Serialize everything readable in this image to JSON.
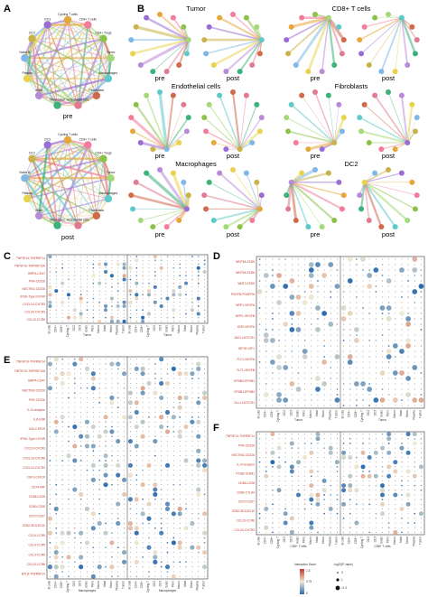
{
  "panels": {
    "A": {
      "label": "A",
      "networks": [
        {
          "caption": "pre",
          "nodes": [
            "Cycling T cells",
            "CD8+ T cells",
            "CD4+ Tregs",
            "Tumor",
            "Macrophages",
            "Fibroblasts",
            "Endothelial cells",
            "Monocytes",
            "Mast",
            "Plasma",
            "Naive B",
            "DC2",
            "DC3"
          ]
        },
        {
          "caption": "post",
          "nodes": [
            "Cycling T cells",
            "CD8+ T cells",
            "CD4+ Tregs",
            "Tumor",
            "Macrophages",
            "Fibroblasts",
            "Endothelial cells",
            "Monocytes",
            "Mast",
            "Plasma",
            "Naive B",
            "DC2",
            "DC3"
          ]
        }
      ]
    },
    "B": {
      "label": "B",
      "groups": [
        {
          "title": "Tumor",
          "pre": "pre",
          "post": "post"
        },
        {
          "title": "CD8+ T cells",
          "pre": "pre",
          "post": "post"
        },
        {
          "title": "Endothelial cells",
          "pre": "pre",
          "post": "post"
        },
        {
          "title": "Fibroblasts",
          "pre": "pre",
          "post": "post"
        },
        {
          "title": "Macrophages",
          "pre": "pre",
          "post": "post"
        },
        {
          "title": "DC2",
          "pre": "pre",
          "post": "post"
        }
      ]
    },
    "C": {
      "label": "C",
      "rows": [
        "TNFSF14-TNFRSF14",
        "TNFSF10-TNFRSF10A",
        "SIRPA-CD47",
        "PVR-CD226",
        "NECTIN2-CD226",
        "IFNG-Type II IFNR",
        "CXCL10-CXCR3",
        "CCL20-CXCR3",
        "CCL20-CCR6"
      ],
      "group_left": "Tumor",
      "group_right": "Tumor"
    },
    "D": {
      "label": "D",
      "rows": [
        "WNT5A-FZD5",
        "WNT5A-FZD6",
        "WNT3-FZD5",
        "PDGFB-PDGFRA",
        "NRP1-VEGFA",
        "NRP1-VEGFB",
        "KDR-VEGFA",
        "JAG1-NOTCH1",
        "IGF1R-IGF1",
        "FLT1-VEGFA",
        "FLT1-VEGFB",
        "EPHB2-EPHB1",
        "EFNB1-EPHB4",
        "DLL1-NOTCH1"
      ],
      "group_left": "Tumor",
      "group_right": "Tumor"
    },
    "E": {
      "label": "E",
      "rows": [
        "TNFSF14-TNFRSF14",
        "TNFSF10-TNFRSF10A",
        "SIRPA-CD47",
        "NECTIN2-CD226",
        "PVR-CD226",
        "IL10-receptor",
        "IL6-IL6R",
        "IL34-CSF1R",
        "IFNG-Type II IFNR",
        "CXCL9-CXCR3",
        "CXCL16-CXCR6",
        "CXCL10-CXCR3",
        "CSF1-CSF1R",
        "CD74-MIF",
        "CD86-CD28",
        "CD80-CD28",
        "CD70-CD27",
        "CD52-SIGLEC10",
        "CCL5-CCR5",
        "CCL4-CCR5",
        "CCL3-CCR5",
        "CCL20-CCR6",
        "BTLA-TNFRSF14"
      ],
      "group_left": "Macrophages",
      "group_right": "Macrophages"
    },
    "F": {
      "label": "F",
      "rows": [
        "TNFSF14-TNFRSF14",
        "PVR-CD226",
        "NECTIN2-CD226",
        "IL10-receptor",
        "ITGB2-ICAM1",
        "CD86-CD28",
        "CD80-CTLA4",
        "CD70-CD27",
        "CD52-SIGLEC10",
        "CCL20-CCR6",
        "CCL20-CXCR3"
      ],
      "group_left": "CD8+ T cells",
      "group_right": "CD8+ T cells"
    }
  },
  "columns": [
    "B cells",
    "CD4+",
    "CD8+",
    "Cycling T",
    "DC2",
    "DC3",
    "Endo",
    "Fibro",
    "Macro",
    "Mast",
    "Mono",
    "Plasma",
    "Tumor"
  ],
  "legend": {
    "color_title": "Interaction Score",
    "color_ticks": [
      "1.5",
      "0.75",
      "0"
    ],
    "size_title": "-log10(P value)",
    "size_ticks": [
      "0",
      "1",
      ">1.3"
    ]
  },
  "colors": {
    "low": "#2b6cb0",
    "mid": "#f0ead2",
    "high": "#c0392b",
    "edge_strong": "#9b8fd6"
  }
}
